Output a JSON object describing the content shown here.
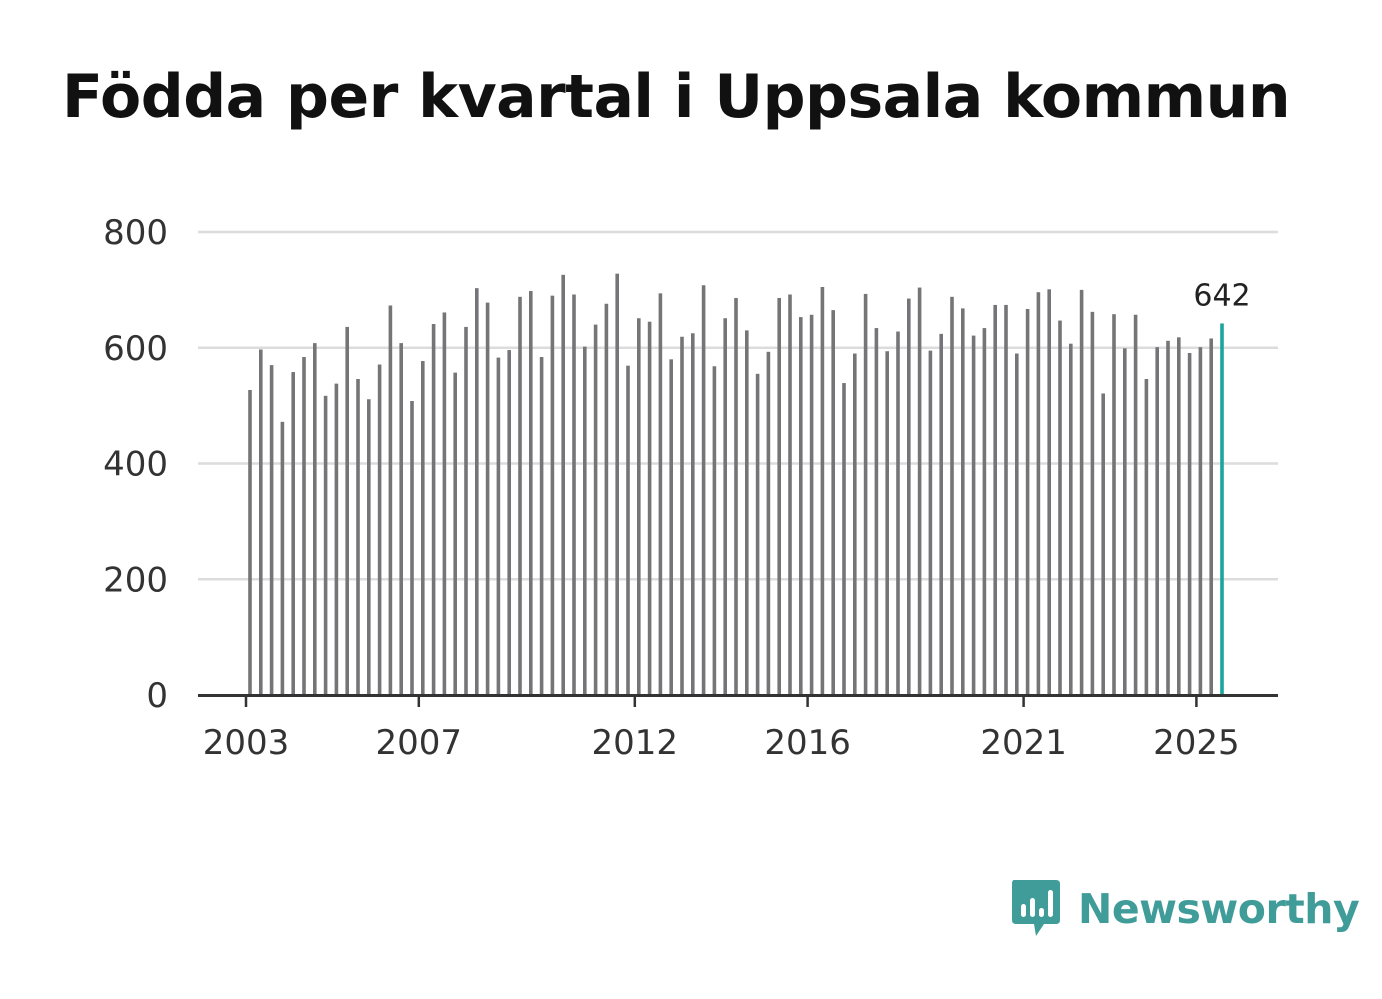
{
  "title": "Födda per kvartal i Uppsala kommun",
  "brand": {
    "name": "Newsworthy",
    "icon": "newsworthy-logo-icon"
  },
  "colors": {
    "bar": "#757477",
    "highlight": "#1aa59e",
    "grid": "#dcdcdc",
    "axis": "#333333",
    "brand": "#3f9c98"
  },
  "chart_data": {
    "type": "bar",
    "title": "Födda per kvartal i Uppsala kommun",
    "xlabel": "",
    "ylabel": "",
    "ylim": [
      0,
      800
    ],
    "yticks": [
      0,
      200,
      400,
      600,
      800
    ],
    "start": {
      "year": 2003,
      "quarter": 1
    },
    "xticks": [
      {
        "label": "2003",
        "index": 0
      },
      {
        "label": "2007",
        "index": 16
      },
      {
        "label": "2012",
        "index": 36
      },
      {
        "label": "2016",
        "index": 52
      },
      {
        "label": "2021",
        "index": 72
      },
      {
        "label": "2025",
        "index": 88
      }
    ],
    "values": [
      527,
      597,
      570,
      472,
      558,
      584,
      608,
      517,
      538,
      636,
      546,
      511,
      571,
      673,
      608,
      508,
      577,
      641,
      661,
      557,
      636,
      703,
      678,
      583,
      596,
      688,
      698,
      584,
      690,
      726,
      692,
      602,
      640,
      676,
      728,
      569,
      651,
      645,
      694,
      580,
      619,
      625,
      708,
      568,
      651,
      686,
      630,
      555,
      593,
      686,
      692,
      653,
      657,
      705,
      665,
      539,
      590,
      693,
      634,
      594,
      628,
      685,
      704,
      595,
      624,
      688,
      668,
      621,
      634,
      674,
      674,
      590,
      667,
      696,
      701,
      647,
      607,
      700,
      662,
      521,
      658,
      599,
      657,
      546,
      601,
      612,
      618,
      591,
      601,
      616,
      642
    ],
    "highlight": {
      "index": 90,
      "label": "642"
    }
  }
}
